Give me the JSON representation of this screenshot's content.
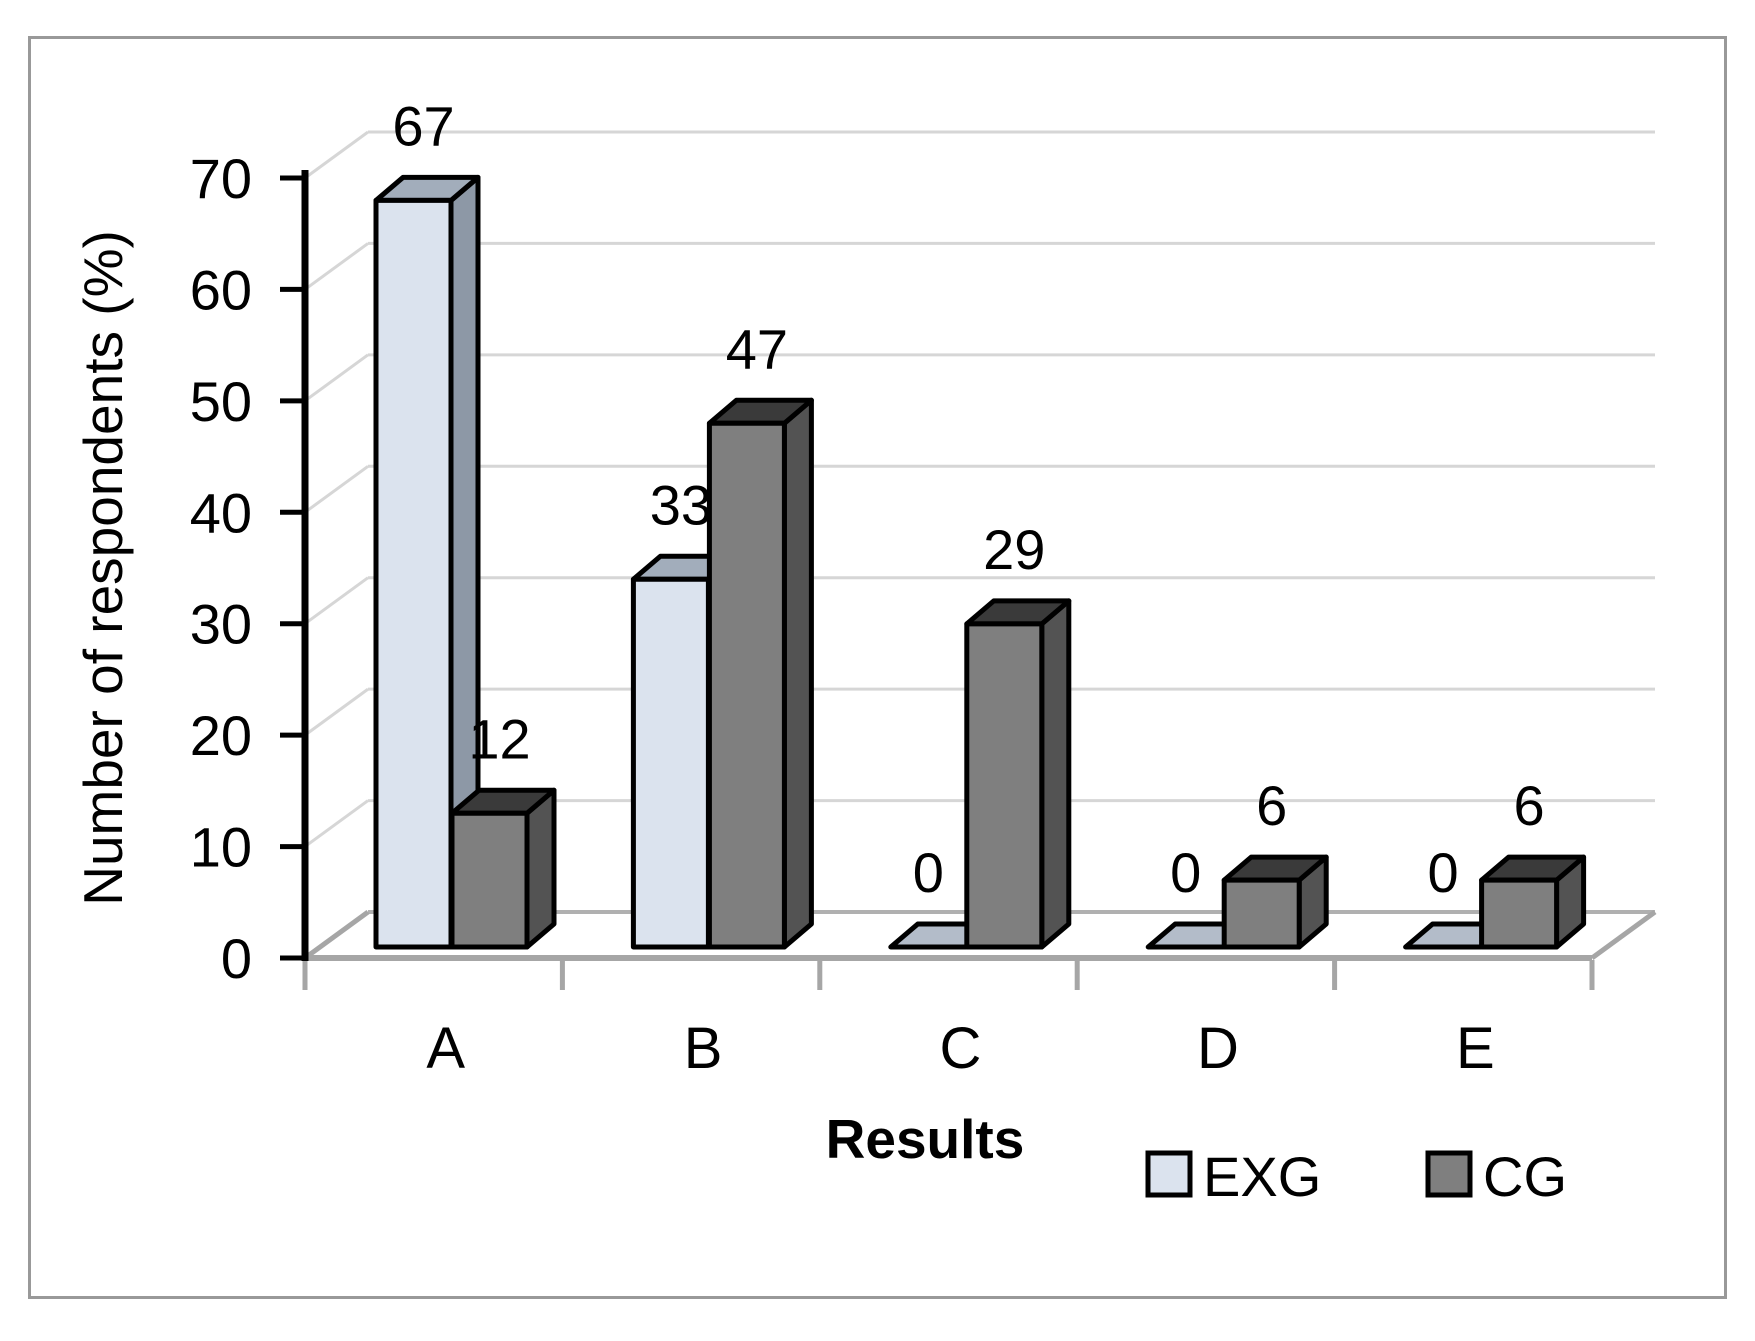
{
  "window": {
    "background": "#ffffff",
    "frame_border_color": "#999999"
  },
  "chart_data": {
    "type": "bar",
    "projection": "3d-clustered-column",
    "categories": [
      "A",
      "B",
      "C",
      "D",
      "E"
    ],
    "series": [
      {
        "name": "EXG",
        "values": [
          67,
          33,
          0,
          0,
          0
        ],
        "color_front": "#dbe3ee",
        "color_top": "#a2adbb",
        "color_side": "#8d98a6"
      },
      {
        "name": "CG",
        "values": [
          12,
          47,
          29,
          6,
          6
        ],
        "color_front": "#7f7f7f",
        "color_top": "#3a3a3a",
        "color_side": "#535353"
      }
    ],
    "data_labels": [
      {
        "series": "EXG",
        "labels": [
          "67",
          "33",
          "0",
          "0",
          "0"
        ]
      },
      {
        "series": "CG",
        "labels": [
          "12",
          "47",
          "29",
          "6",
          "6"
        ]
      }
    ],
    "xlabel": "Results",
    "ylabel": "Number of respondents (%)",
    "ylim": [
      0,
      70
    ],
    "yticks": [
      "0",
      "10",
      "20",
      "30",
      "40",
      "50",
      "60",
      "70"
    ],
    "ytick_step": 10,
    "grid": true,
    "legend_position": "bottom-right",
    "legend": [
      "EXG",
      "CG"
    ],
    "colors": {
      "gridline": "#d6d6d6",
      "floor_edge": "#a6a6a6",
      "wall_joint": "#b0b0b0",
      "axis": "#000000",
      "zero_slab": "#b3bcc9",
      "outline": "#000000",
      "label_text": "#000000"
    }
  }
}
